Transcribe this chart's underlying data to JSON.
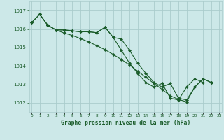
{
  "background_color": "#cce8e8",
  "grid_color": "#aacccc",
  "line_color": "#1a5c2a",
  "x_labels": [
    "0",
    "1",
    "2",
    "3",
    "4",
    "5",
    "6",
    "7",
    "8",
    "9",
    "10",
    "11",
    "12",
    "13",
    "14",
    "15",
    "16",
    "17",
    "18",
    "19",
    "20",
    "21",
    "22",
    "23"
  ],
  "xlabel": "Graphe pression niveau de la mer (hPa)",
  "ylim": [
    1011.5,
    1017.5
  ],
  "yticks": [
    1012,
    1013,
    1014,
    1015,
    1016,
    1017
  ],
  "series1": [
    1016.35,
    1016.8,
    1016.2,
    1015.95,
    1015.95,
    1015.9,
    1015.85,
    1015.85,
    1015.8,
    1016.1,
    1015.55,
    1015.45,
    1014.85,
    1014.15,
    1013.6,
    1013.1,
    1012.85,
    1013.05,
    1012.25,
    1012.15,
    1012.85,
    1013.3,
    1013.1,
    null
  ],
  "series2": [
    null,
    1016.8,
    1016.2,
    1015.95,
    1015.95,
    1015.9,
    1015.85,
    1015.85,
    1015.8,
    1016.1,
    1015.55,
    1014.85,
    1014.15,
    1013.6,
    1013.1,
    1012.85,
    1013.05,
    1012.25,
    1012.15,
    1012.85,
    1013.3,
    1013.1,
    null,
    null
  ],
  "series3": [
    1016.35,
    1016.8,
    1016.2,
    1015.95,
    1015.78,
    1015.65,
    1015.48,
    1015.3,
    1015.1,
    1014.88,
    1014.62,
    1014.35,
    1014.05,
    1013.72,
    1013.38,
    1013.05,
    1012.72,
    1012.38,
    1012.18,
    1012.05,
    1012.85,
    1013.3,
    1013.1,
    null
  ]
}
